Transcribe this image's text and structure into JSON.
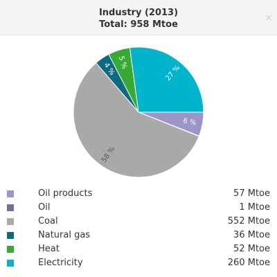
{
  "chart_data": {
    "type": "pie",
    "title": "Industry (2013)",
    "subtitle": "Total: 958 Mtoe",
    "categories": [
      "Oil products",
      "Oil",
      "Coal",
      "Natural gas",
      "Heat",
      "Electricity"
    ],
    "values": [
      57,
      1,
      552,
      36,
      52,
      260
    ],
    "value_labels": [
      "57 Mtoe",
      "1 Mtoe",
      "552 Mtoe",
      "36 Mtoe",
      "52 Mtoe",
      "260 Mtoe"
    ],
    "slice_labels": [
      "6 %",
      null,
      "58 %",
      "4 %",
      "5 %",
      "27 %"
    ],
    "colors": [
      "#9a96c6",
      "#746e9c",
      "#a9a9a9",
      "#0d6b80",
      "#37a935",
      "#00b4cc"
    ]
  },
  "close_button": "×"
}
